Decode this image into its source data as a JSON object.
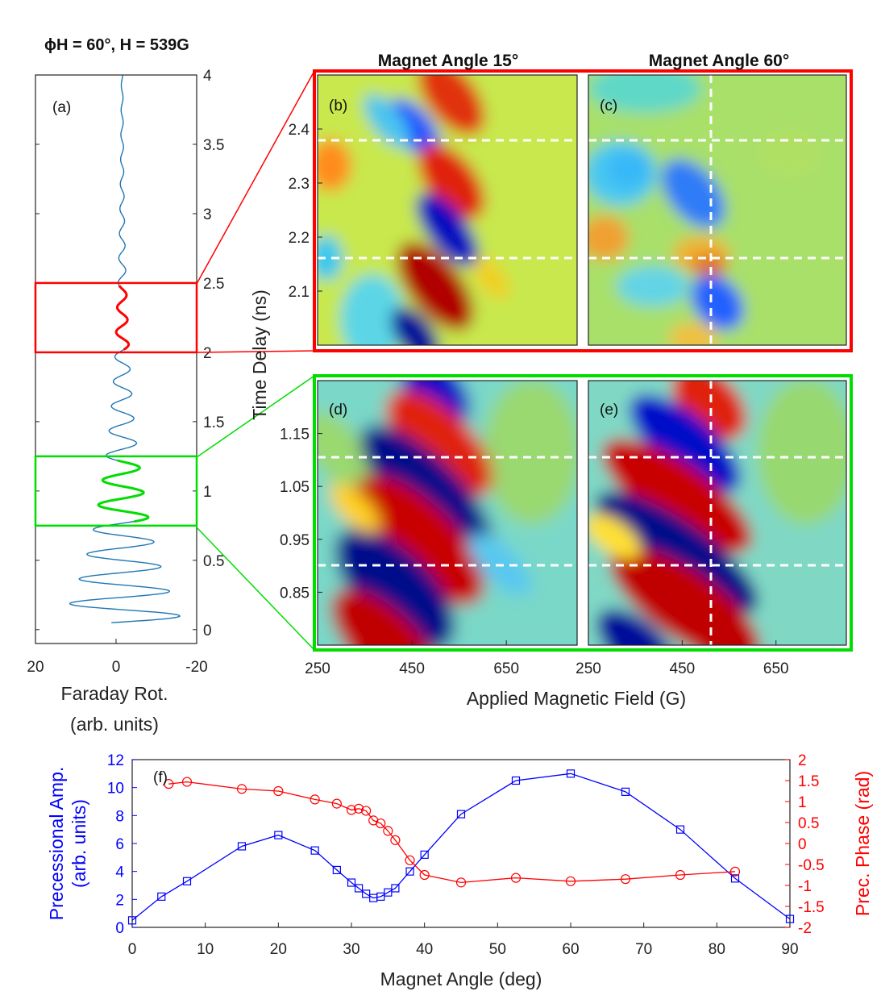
{
  "figure": {
    "header": "ϕH = 60°, H = 539G"
  },
  "chart_data": [
    {
      "panel": "(a)",
      "type": "line",
      "title": "ϕH = 60°, H = 539G",
      "xlabel": "Faraday Rot. (arb. units)",
      "ylabel": "",
      "xlim": [
        20,
        -20
      ],
      "ylim": [
        -0.1,
        4.0
      ],
      "x_ticks": [
        "20",
        "0",
        "-20"
      ],
      "y_ticks": [
        "0",
        "0.5",
        "1",
        "1.5",
        "2",
        "2.5",
        "3",
        "3.5",
        "4"
      ],
      "trace": {
        "period_ns": 0.178,
        "amplitude_start": 16,
        "decay_ns": 0.9,
        "offset": -1.5,
        "color": "#1f77b4"
      },
      "highlights": [
        {
          "range_ns": [
            2.0,
            2.5
          ],
          "color": "#ff0000"
        },
        {
          "range_ns": [
            0.75,
            1.25
          ],
          "color": "#00dd00"
        }
      ]
    },
    {
      "type": "heatmap",
      "ylabel": "Time Delay (ns)",
      "xlabel": "Applied Magnetic Field (G)",
      "column_titles": [
        "Magnet Angle 15°",
        "Magnet Angle 60°"
      ],
      "x_ticks": [
        "250",
        "450",
        "650"
      ],
      "xlim": [
        250,
        800
      ],
      "colormap": "jet",
      "panels": [
        {
          "label": "(b)",
          "angle_deg": 15,
          "yrange_ns": [
            2.0,
            2.5
          ],
          "y_ticks": [
            "2.1",
            "2.2",
            "2.3",
            "2.4"
          ],
          "dashed_h_ns": [
            2.16,
            2.38
          ],
          "dashed_v_G": null,
          "frame": "#ff0000"
        },
        {
          "label": "(c)",
          "angle_deg": 60,
          "yrange_ns": [
            2.0,
            2.5
          ],
          "y_ticks": [],
          "dashed_h_ns": [
            2.16,
            2.38
          ],
          "dashed_v_G": 539,
          "frame": "#ff0000"
        },
        {
          "label": "(d)",
          "angle_deg": 15,
          "yrange_ns": [
            0.75,
            1.25
          ],
          "y_ticks": [
            "0.85",
            "0.95",
            "1.05",
            "1.15"
          ],
          "dashed_h_ns": [
            0.9,
            1.1
          ],
          "dashed_v_G": null,
          "frame": "#00dd00"
        },
        {
          "label": "(e)",
          "angle_deg": 60,
          "yrange_ns": [
            0.75,
            1.25
          ],
          "y_ticks": [],
          "dashed_h_ns": [
            0.9,
            1.1
          ],
          "dashed_v_G": 539,
          "frame": "#00dd00"
        }
      ]
    },
    {
      "panel": "(f)",
      "type": "line",
      "xlabel": "Magnet Angle (deg)",
      "ylabel_left": "Precessional Amp.",
      "ylabel_left2": "(arb. units)",
      "ylabel_right": "Prec. Phase (rad)",
      "xlim": [
        0,
        90
      ],
      "ylim_left": [
        0,
        12
      ],
      "ylim_right": [
        -2,
        2
      ],
      "x_ticks": [
        "0",
        "10",
        "20",
        "30",
        "40",
        "50",
        "60",
        "70",
        "80",
        "90"
      ],
      "y_ticks_left": [
        "0",
        "2",
        "4",
        "6",
        "8",
        "10",
        "12"
      ],
      "y_ticks_right": [
        "-2",
        "-1.5",
        "-1",
        "-0.5",
        "0",
        "0.5",
        "1",
        "1.5",
        "2"
      ],
      "series": [
        {
          "name": "Precessional Amp.",
          "axis": "left",
          "marker": "square",
          "color": "#0000ff",
          "x": [
            0,
            4,
            7.5,
            15,
            20,
            25,
            28,
            30,
            31,
            32,
            33,
            34,
            35,
            36,
            38,
            40,
            45,
            52.5,
            60,
            67.5,
            75,
            82.5,
            90
          ],
          "y": [
            0.5,
            2.2,
            3.3,
            5.8,
            6.6,
            5.5,
            4.1,
            3.2,
            2.8,
            2.4,
            2.1,
            2.2,
            2.5,
            2.8,
            4.0,
            5.2,
            8.1,
            10.5,
            11.0,
            9.7,
            7.0,
            3.5,
            0.6
          ]
        },
        {
          "name": "Prec. Phase",
          "axis": "right",
          "marker": "circle",
          "color": "#ff0000",
          "x": [
            5,
            7.5,
            15,
            20,
            25,
            28,
            30,
            31,
            32,
            33,
            34,
            35,
            36,
            38,
            40,
            45,
            52.5,
            60,
            67.5,
            75,
            82.5
          ],
          "y": [
            1.42,
            1.47,
            1.3,
            1.25,
            1.05,
            0.95,
            0.8,
            0.83,
            0.78,
            0.55,
            0.48,
            0.3,
            0.08,
            -0.4,
            -0.75,
            -0.93,
            -0.82,
            -0.9,
            -0.85,
            -0.75,
            -0.67
          ]
        }
      ]
    }
  ]
}
